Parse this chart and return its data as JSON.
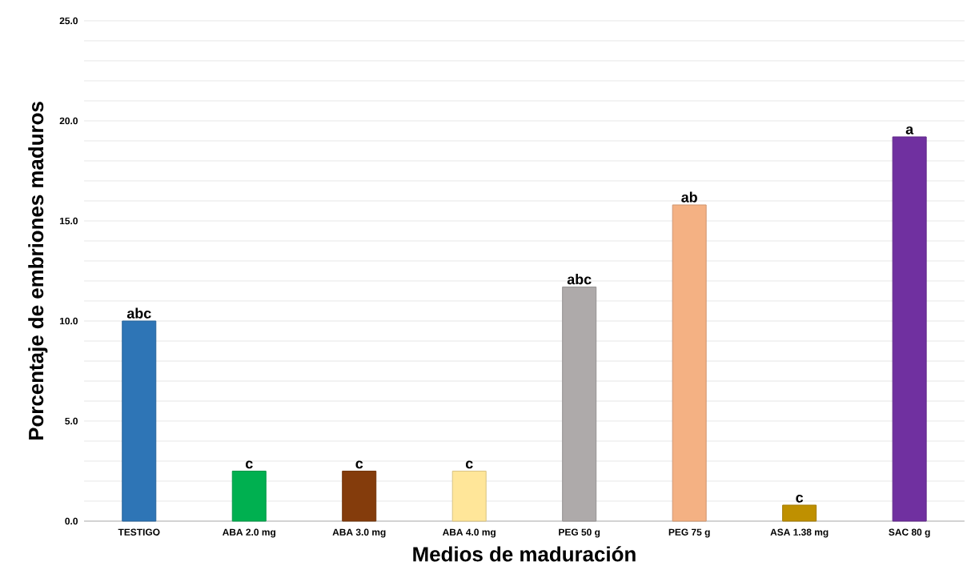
{
  "chart_data": {
    "type": "bar",
    "xlabel": "Medios de maduración",
    "ylabel": "Porcentaje de embriones maduros",
    "categories": [
      "TESTIGO",
      "ABA 2.0 mg",
      "ABA 3.0 mg",
      "ABA 4.0 mg",
      "PEG 50 g",
      "PEG 75 g",
      "ASA 1.38 mg",
      "SAC 80 g"
    ],
    "values": [
      10.0,
      2.5,
      2.5,
      2.5,
      11.7,
      15.8,
      0.8,
      19.2
    ],
    "colors": [
      "#2e75b6",
      "#00b050",
      "#843c0c",
      "#ffe699",
      "#aeaaaa",
      "#f4b183",
      "#bf9000",
      "#7030a0"
    ],
    "ylim": [
      0,
      25
    ],
    "yticks": [
      {
        "value": 0,
        "label": "0.0"
      },
      {
        "value": 1,
        "label": null
      },
      {
        "value": 2,
        "label": null
      },
      {
        "value": 3,
        "label": null
      },
      {
        "value": 4,
        "label": null
      },
      {
        "value": 5,
        "label": "5.0"
      },
      {
        "value": 6,
        "label": null
      },
      {
        "value": 7,
        "label": null
      },
      {
        "value": 8,
        "label": null
      },
      {
        "value": 9,
        "label": null
      },
      {
        "value": 10,
        "label": "10.0"
      },
      {
        "value": 11,
        "label": null
      },
      {
        "value": 12,
        "label": null
      },
      {
        "value": 13,
        "label": null
      },
      {
        "value": 14,
        "label": null
      },
      {
        "value": 15,
        "label": "15.0"
      },
      {
        "value": 16,
        "label": null
      },
      {
        "value": 17,
        "label": null
      },
      {
        "value": 18,
        "label": null
      },
      {
        "value": 19,
        "label": null
      },
      {
        "value": 20,
        "label": "20.0"
      },
      {
        "value": 21,
        "label": null
      },
      {
        "value": 22,
        "label": null
      },
      {
        "value": 23,
        "label": null
      },
      {
        "value": 24,
        "label": null
      },
      {
        "value": 25,
        "label": "25.0"
      }
    ],
    "grid": "y",
    "annotations": [
      {
        "text": "abc",
        "x": "TESTIGO",
        "y": 10.0
      },
      {
        "text": "c",
        "x": "ABA 2.0 mg",
        "y": 2.5
      },
      {
        "text": "c",
        "x": "ABA 3.0 mg",
        "y": 2.5
      },
      {
        "text": "c",
        "x": "ABA 4.0 mg",
        "y": 2.5
      },
      {
        "text": "abc",
        "x": "PEG 50 g",
        "y": 11.7
      },
      {
        "text": "ab",
        "x": "PEG 75 g",
        "y": 15.8
      },
      {
        "text": "c",
        "x": "ASA 1.38 mg",
        "y": 0.8
      },
      {
        "text": "a",
        "x": "SAC 80 g",
        "y": 19.2
      }
    ]
  }
}
